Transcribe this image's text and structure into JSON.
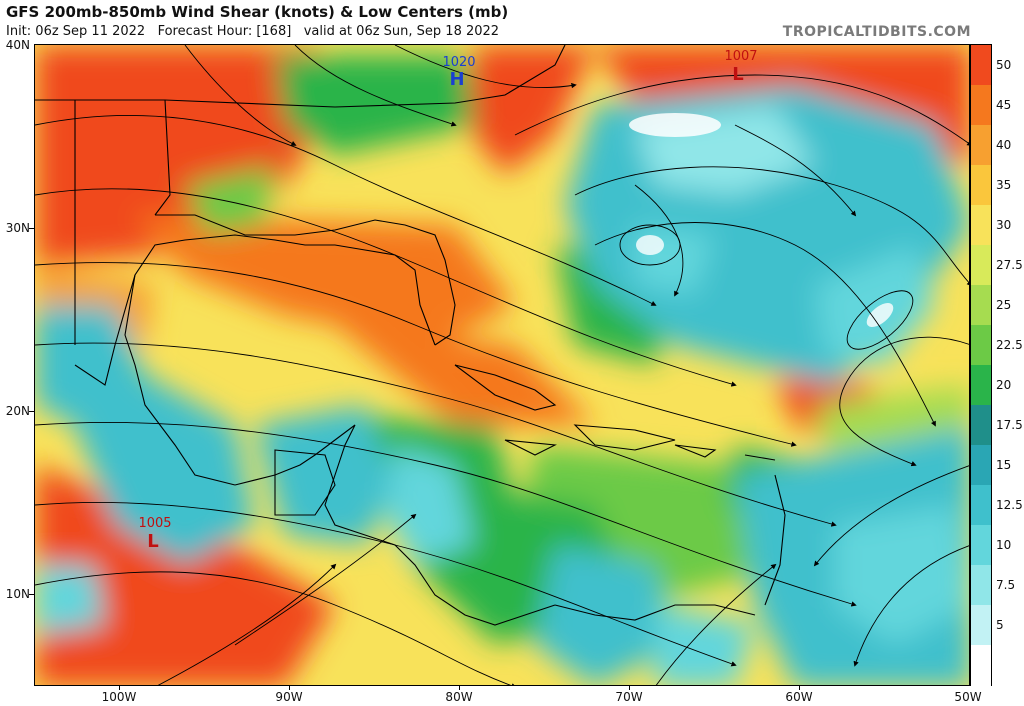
{
  "header": {
    "title": "GFS 200mb-850mb Wind Shear (knots) & Low Centers (mb)",
    "init": "Init: 06z Sep 11 2022",
    "forecast_hour": "Forecast Hour: [168]",
    "valid": "valid at 06z Sun, Sep 18 2022",
    "brand": "TROPICALTIDBITS.COM"
  },
  "axes": {
    "lat_labels": [
      "40N",
      "30N",
      "20N",
      "10N"
    ],
    "lon_labels": [
      "100W",
      "90W",
      "80W",
      "70W",
      "60W",
      "50W"
    ]
  },
  "colorbar": {
    "labels": [
      "50",
      "45",
      "40",
      "35",
      "30",
      "27.5",
      "25",
      "22.5",
      "20",
      "17.5",
      "15",
      "12.5",
      "10",
      "7.5",
      "5"
    ],
    "colors": [
      "#f04a1e",
      "#f5781e",
      "#f7a030",
      "#fac63c",
      "#f8e25a",
      "#d8ea5a",
      "#a6dc50",
      "#6cca46",
      "#2ab44a",
      "#1f8f8a",
      "#2aa6b4",
      "#3fc0cc",
      "#62d6dc",
      "#90e6e8",
      "#c2f2f4",
      "#ffffff"
    ]
  },
  "pressure_centers": [
    {
      "type": "H",
      "value": "1020"
    },
    {
      "type": "L",
      "value": "1007"
    },
    {
      "type": "L",
      "value": "1005"
    }
  ]
}
